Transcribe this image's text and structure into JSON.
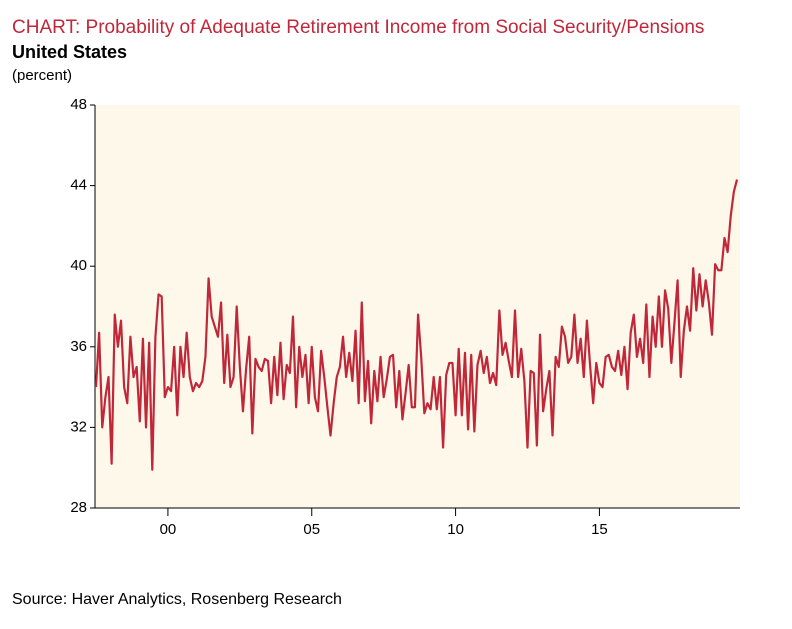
{
  "chart_data": {
    "type": "line",
    "title": "CHART: Probability of Adequate Retirement Income from Social Security/Pensions",
    "subtitle": "United States",
    "y_label": "(percent)",
    "source": "Source: Haver Analytics, Rosenberg Research",
    "color": "#c0283a",
    "background": "#fdf8ea",
    "categories": [
      null,
      null,
      null,
      null,
      null,
      null,
      null,
      null,
      null,
      null,
      null,
      null,
      null,
      null,
      null,
      null,
      null,
      null,
      null,
      null,
      null,
      null,
      null,
      "00",
      null,
      null,
      null,
      null,
      null,
      null,
      null,
      null,
      null,
      null,
      null,
      null,
      null,
      null,
      null,
      null,
      null,
      null,
      null,
      null,
      null,
      null,
      null,
      null,
      null,
      null,
      null,
      null,
      null,
      null,
      null,
      null,
      null,
      null,
      null,
      null,
      null,
      null,
      null,
      null,
      null,
      null,
      null,
      null,
      null,
      "05",
      null,
      null,
      null,
      null,
      null,
      null,
      null,
      null,
      null,
      null,
      null,
      null,
      null,
      null,
      null,
      null,
      null,
      null,
      null,
      null,
      null,
      null,
      null,
      null,
      null,
      null,
      null,
      null,
      null,
      null,
      null,
      null,
      null,
      null,
      null,
      null,
      null,
      null,
      null,
      null,
      null,
      null,
      null,
      null,
      null,
      "10",
      null,
      null,
      null,
      null,
      null,
      null,
      null,
      null,
      null,
      null,
      null,
      null,
      null,
      null,
      null,
      null,
      null,
      null,
      null,
      null,
      null,
      null,
      null,
      null,
      null,
      null,
      null,
      null,
      null,
      null,
      null,
      null,
      null,
      null,
      null,
      null,
      null,
      null,
      null,
      null,
      null,
      null,
      null,
      null,
      null,
      "15",
      null,
      null,
      null,
      null,
      null,
      null,
      null,
      null,
      null,
      null,
      null,
      null,
      null,
      null,
      null,
      null,
      null,
      null,
      null,
      null,
      null,
      null,
      null,
      null,
      null,
      null,
      null,
      null,
      null,
      null,
      null,
      null,
      null,
      null,
      null,
      null,
      null,
      null,
      null,
      null,
      null,
      null,
      null,
      null
    ],
    "values": [
      34,
      36.7,
      32,
      33.5,
      34.5,
      30.2,
      37.6,
      36,
      37.3,
      34,
      33.2,
      36.5,
      34.5,
      35,
      32.3,
      36.4,
      32,
      36.2,
      29.9,
      36.5,
      38.6,
      38.5,
      33.5,
      34,
      33.8,
      36,
      32.6,
      36,
      34.5,
      36.7,
      34.5,
      33.8,
      34.2,
      34,
      34.3,
      35.5,
      39.4,
      37.5,
      37,
      36.5,
      38.2,
      34.2,
      36.6,
      34,
      34.5,
      38.0,
      35,
      32.8,
      34.9,
      36.5,
      31.7,
      35.4,
      35,
      34.8,
      35.4,
      35.3,
      33.2,
      35.5,
      33.6,
      36.2,
      33.4,
      35.1,
      34.7,
      37.5,
      33,
      36,
      34.5,
      35.6,
      33.2,
      36,
      33.5,
      32.8,
      35.8,
      34.5,
      33,
      31.6,
      33.2,
      34.5,
      35,
      36.5,
      34.5,
      35.7,
      34.3,
      36.8,
      33.2,
      38.2,
      33.3,
      35.3,
      32.2,
      34.8,
      33.3,
      35.5,
      33.5,
      34.4,
      35.5,
      35.6,
      33,
      34.8,
      32.4,
      33.7,
      35.1,
      33,
      33,
      37.6,
      35.5,
      32.7,
      33.2,
      32.9,
      34.5,
      32.9,
      34.5,
      31,
      34.6,
      35.2,
      35.2,
      32.6,
      35.9,
      32.6,
      35.7,
      31.9,
      35.6,
      31.8,
      35.1,
      35.8,
      34.7,
      35.5,
      34.2,
      34.7,
      34.1,
      37.8,
      35.6,
      36.2,
      35.3,
      34.5,
      37.8,
      34.5,
      35.9,
      34.3,
      31,
      34.8,
      34.7,
      31.1,
      36.6,
      32.8,
      33.9,
      34.8,
      31.6,
      35.5,
      35,
      37,
      36.5,
      35.2,
      35.5,
      37.6,
      35.2,
      36.4,
      34.5,
      37.3,
      35.1,
      33.2,
      35.2,
      34.2,
      34,
      35.5,
      35.6,
      35,
      34.8,
      35.8,
      34.6,
      36,
      33.9,
      36.7,
      37.6,
      35.5,
      36.4,
      35.2,
      38.1,
      34.5,
      37.5,
      36,
      38.5,
      36,
      38.8,
      37.9,
      35.2,
      37.2,
      39.3,
      34.5,
      36.8,
      38,
      36.8,
      39.9,
      37.8,
      39.6,
      38,
      39.3,
      38.2,
      36.6,
      40.1,
      39.8,
      39.8,
      41.4,
      40.7,
      42.5,
      43.7,
      44.3
    ],
    "ylim": [
      28,
      48
    ],
    "yticks": [
      28,
      32,
      36,
      40,
      44,
      48
    ]
  }
}
